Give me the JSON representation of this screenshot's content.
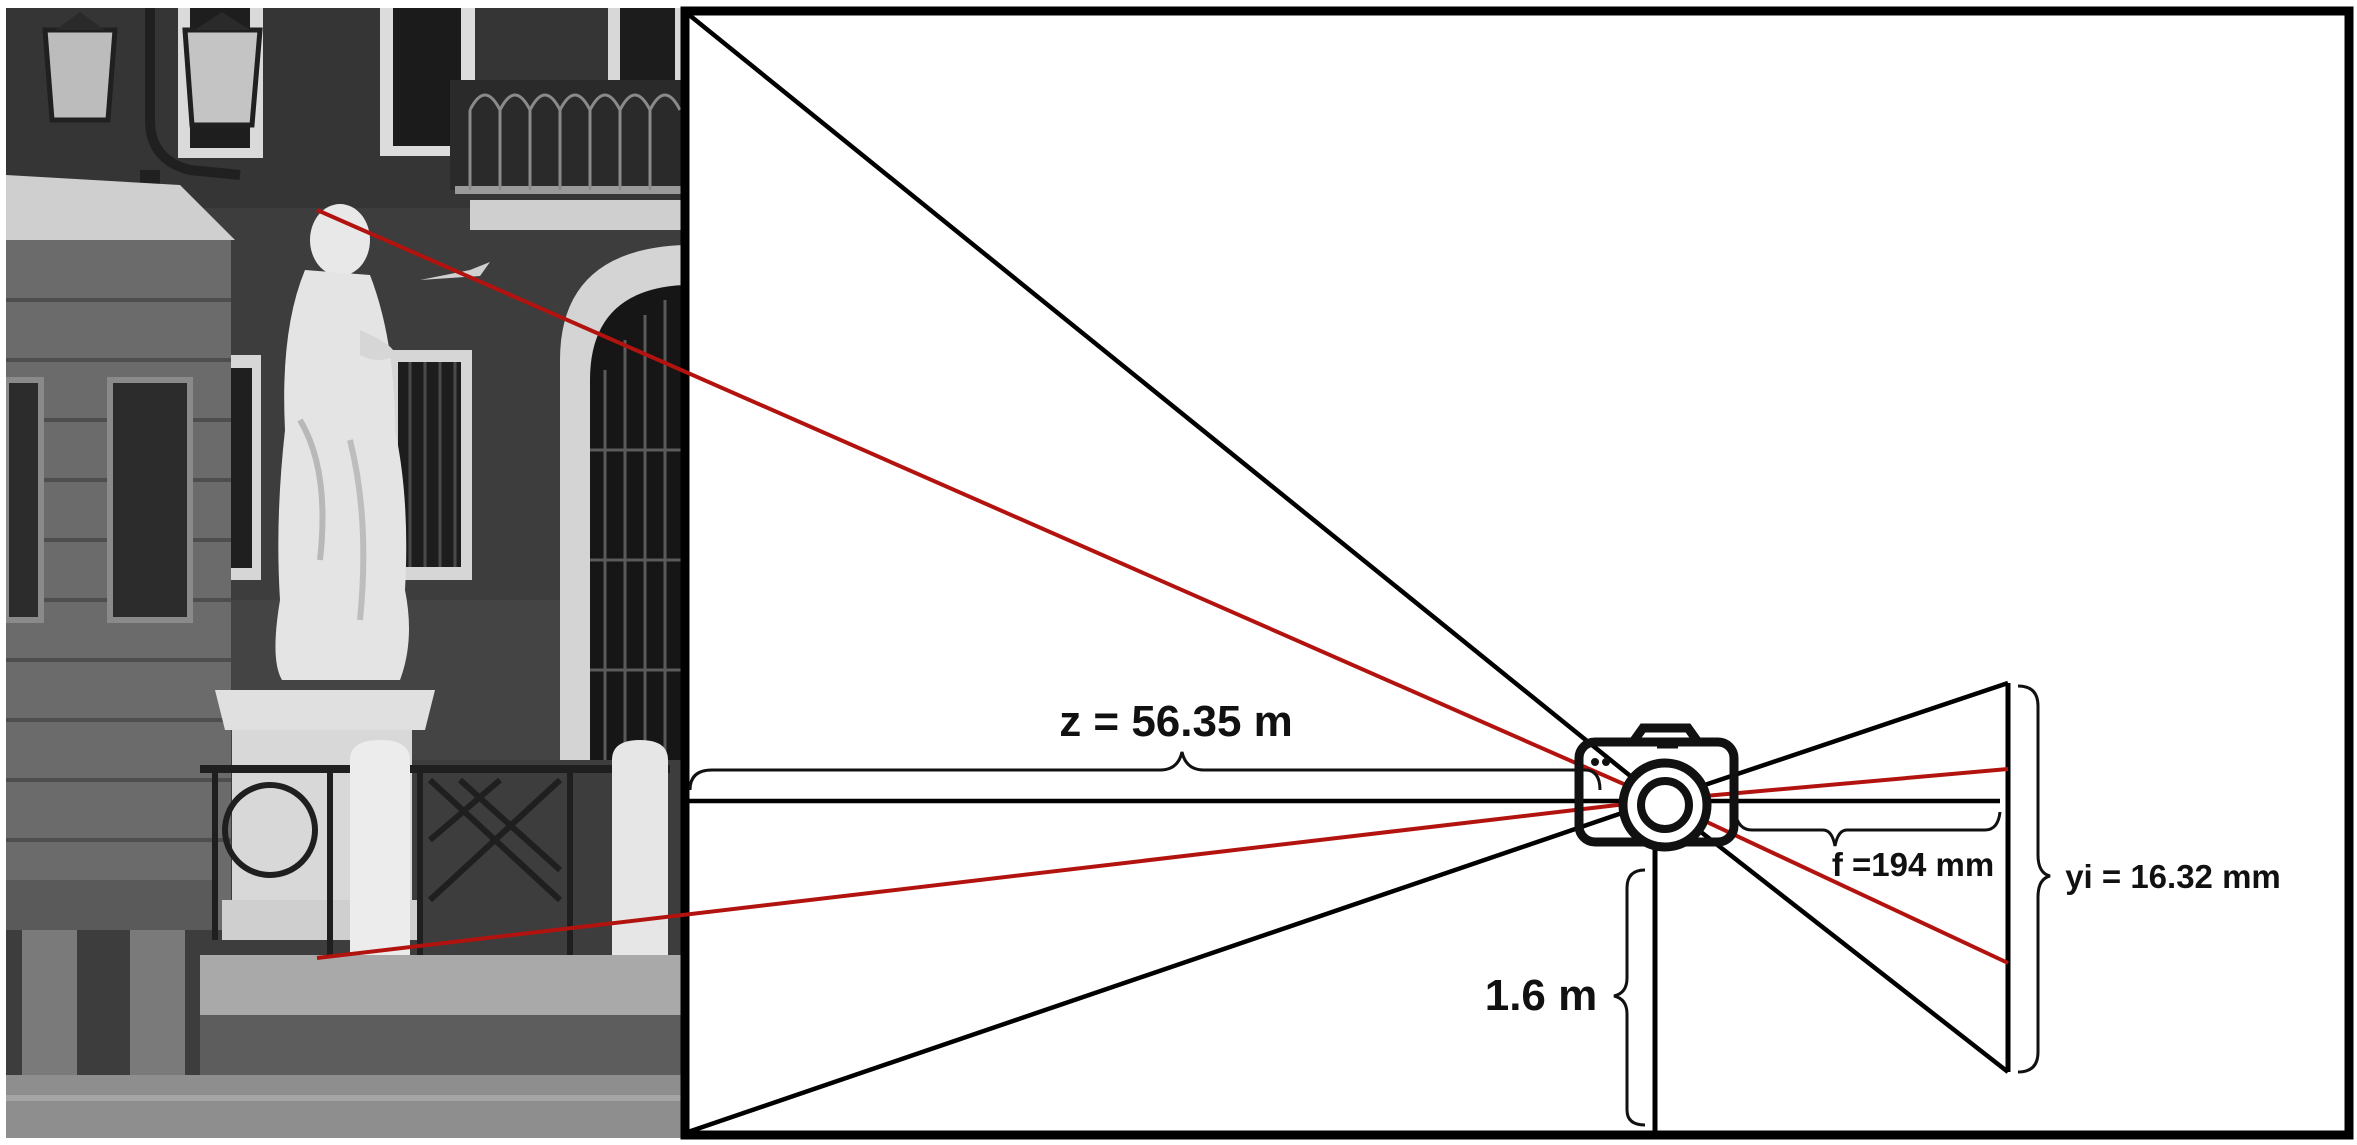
{
  "labels": {
    "object_distance": "z = 56.35 m",
    "camera_height": "1.6 m",
    "focal_length": "f =194 mm",
    "image_height": "yi = 16.32 mm"
  },
  "photo": {
    "subject": "statue",
    "grayscale": true
  },
  "colors": {
    "ray": "#b3130f",
    "frame": "#000000",
    "background": "#ffffff",
    "wall": "#3a3a3a",
    "statue": "#e6e6e6"
  },
  "icons": {
    "camera": "camera-icon"
  }
}
